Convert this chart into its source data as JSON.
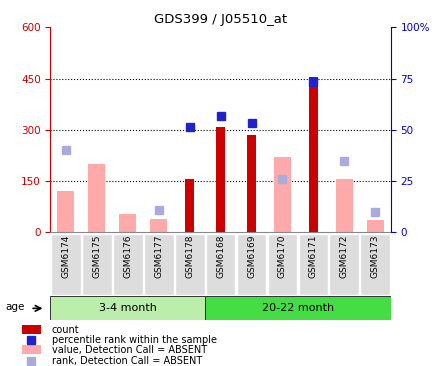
{
  "title": "GDS399 / J05510_at",
  "samples": [
    "GSM6174",
    "GSM6175",
    "GSM6176",
    "GSM6177",
    "GSM6178",
    "GSM6168",
    "GSM6169",
    "GSM6170",
    "GSM6171",
    "GSM6172",
    "GSM6173"
  ],
  "groups": [
    {
      "label": "3-4 month",
      "n": 5,
      "color": "#bbeeaa"
    },
    {
      "label": "20-22 month",
      "n": 6,
      "color": "#44dd44"
    }
  ],
  "count_values": [
    null,
    null,
    null,
    null,
    155,
    310,
    285,
    null,
    455,
    null,
    null
  ],
  "rank_values": [
    null,
    null,
    null,
    null,
    308,
    340,
    320,
    null,
    440,
    null,
    null
  ],
  "value_absent": [
    120,
    200,
    55,
    40,
    null,
    null,
    null,
    220,
    null,
    155,
    35
  ],
  "rank_absent": [
    240,
    null,
    null,
    65,
    null,
    null,
    null,
    155,
    null,
    210,
    60
  ],
  "ylim": [
    0,
    600
  ],
  "yticks_left": [
    0,
    150,
    300,
    450,
    600
  ],
  "yticks_right": [
    0,
    25,
    50,
    75,
    100
  ],
  "right_tick_labels": [
    "0",
    "25",
    "50",
    "75",
    "100%"
  ],
  "left_color": "#cc0000",
  "right_color": "#0000cc",
  "dotted_lines": [
    150,
    300,
    450
  ],
  "bar_color_count": "#cc0000",
  "bar_color_absent_val": "#ffaaaa",
  "dot_color_rank": "#2222cc",
  "dot_color_rank_absent": "#aaaadd",
  "legend_items": [
    {
      "label": "count",
      "color": "#cc0000",
      "type": "rect"
    },
    {
      "label": "percentile rank within the sample",
      "color": "#2222cc",
      "type": "sq"
    },
    {
      "label": "value, Detection Call = ABSENT",
      "color": "#ffaaaa",
      "type": "rect"
    },
    {
      "label": "rank, Detection Call = ABSENT",
      "color": "#aaaadd",
      "type": "sq"
    }
  ]
}
